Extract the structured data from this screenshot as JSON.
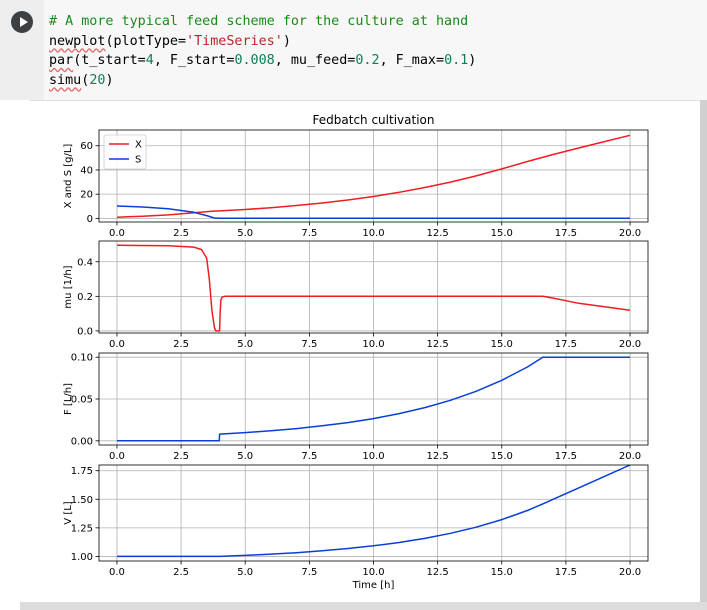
{
  "cell": {
    "run_button_label": "Run cell",
    "code_lines": [
      {
        "segments": [
          {
            "t": "# A more typical feed scheme for the culture at hand",
            "c": "c-comment"
          }
        ]
      },
      {
        "segments": [
          {
            "t": "newplot",
            "c": "sq"
          },
          {
            "t": "(plotType="
          },
          {
            "t": "'TimeSeries'",
            "c": "c-string"
          },
          {
            "t": ")"
          }
        ]
      },
      {
        "segments": [
          {
            "t": "par",
            "c": "sq"
          },
          {
            "t": "(t_start="
          },
          {
            "t": "4",
            "c": "c-num"
          },
          {
            "t": ", F_start="
          },
          {
            "t": "0.008",
            "c": "c-num"
          },
          {
            "t": ", mu_feed="
          },
          {
            "t": "0.2",
            "c": "c-num"
          },
          {
            "t": ", F_max="
          },
          {
            "t": "0.1",
            "c": "c-num"
          },
          {
            "t": ")"
          }
        ]
      },
      {
        "segments": [
          {
            "t": "simu",
            "c": "sq"
          },
          {
            "t": "("
          },
          {
            "t": "20",
            "c": "c-num"
          },
          {
            "t": ")"
          }
        ]
      }
    ]
  },
  "colors": {
    "x_series": "#ee1d23",
    "s_series": "#0a3fd6",
    "mu_series": "#ee1d23",
    "f_series": "#0a3fd6",
    "v_series": "#0a3fd6"
  },
  "chart_data": [
    {
      "type": "line",
      "title": "Fedbatch cultivation",
      "ylabel": "X and S [g/L]",
      "xlabel": "",
      "xlim": [
        -0.7,
        20.7
      ],
      "ylim": [
        -3,
        73
      ],
      "xticks": [
        "0.0",
        "2.5",
        "5.0",
        "7.5",
        "10.0",
        "12.5",
        "15.0",
        "17.5",
        "20.0"
      ],
      "yticks": [
        "0",
        "20",
        "40",
        "60"
      ],
      "legend_position": "top-left",
      "grid": true,
      "series": [
        {
          "name": "X",
          "color": "#ee1d23",
          "x": [
            0,
            1,
            2,
            3,
            3.7,
            4,
            5,
            6,
            7,
            8,
            9,
            10,
            11,
            12,
            13,
            14,
            15,
            16,
            17,
            18,
            19,
            20
          ],
          "y": [
            1.0,
            1.8,
            2.9,
            4.6,
            5.9,
            6.2,
            7.3,
            8.8,
            10.6,
            12.7,
            15.2,
            18.1,
            21.5,
            25.5,
            30.0,
            35.1,
            40.9,
            47.0,
            52.8,
            58.1,
            63.4,
            68.6
          ]
        },
        {
          "name": "S",
          "color": "#0a3fd6",
          "x": [
            0,
            1,
            2,
            3,
            3.5,
            3.8,
            4,
            5,
            10,
            15,
            20
          ],
          "y": [
            10.2,
            9.4,
            7.9,
            5.0,
            2.3,
            0.3,
            0.1,
            0.1,
            0.1,
            0.1,
            0.1
          ]
        }
      ]
    },
    {
      "type": "line",
      "ylabel": "mu [1/h]",
      "xlabel": "",
      "xlim": [
        -0.7,
        20.7
      ],
      "ylim": [
        -0.012,
        0.52
      ],
      "xticks": [
        "0.0",
        "2.5",
        "5.0",
        "7.5",
        "10.0",
        "12.5",
        "15.0",
        "17.5",
        "20.0"
      ],
      "yticks": [
        "0.0",
        "0.2",
        "0.4"
      ],
      "grid": true,
      "series": [
        {
          "name": "",
          "color": "#ee1d23",
          "x": [
            0,
            2,
            3,
            3.3,
            3.5,
            3.6,
            3.7,
            3.8,
            3.85,
            4.0,
            4.02,
            4.05,
            4.1,
            4.2,
            5,
            10,
            16.6,
            17,
            17.5,
            18,
            19,
            20
          ],
          "y": [
            0.495,
            0.492,
            0.485,
            0.47,
            0.42,
            0.3,
            0.12,
            0.02,
            0.0,
            0.0,
            0.1,
            0.18,
            0.195,
            0.2,
            0.2,
            0.2,
            0.2,
            0.19,
            0.175,
            0.16,
            0.14,
            0.12
          ]
        }
      ]
    },
    {
      "type": "line",
      "ylabel": "F [L/h]",
      "xlabel": "",
      "xlim": [
        -0.7,
        20.7
      ],
      "ylim": [
        -0.005,
        0.105
      ],
      "xticks": [
        "0.0",
        "2.5",
        "5.0",
        "7.5",
        "10.0",
        "12.5",
        "15.0",
        "17.5",
        "20.0"
      ],
      "yticks": [
        "0.00",
        "0.05",
        "0.10"
      ],
      "grid": true,
      "series": [
        {
          "name": "",
          "color": "#0a3fd6",
          "x": [
            0,
            1,
            2,
            3,
            3.99,
            4.0,
            5,
            6,
            7,
            8,
            9,
            10,
            11,
            12,
            13,
            14,
            15,
            16,
            16.6,
            17,
            18,
            19,
            20
          ],
          "y": [
            0,
            0,
            0,
            0,
            0,
            0.008,
            0.0098,
            0.012,
            0.0146,
            0.0179,
            0.0218,
            0.0266,
            0.0325,
            0.0397,
            0.0485,
            0.0592,
            0.0723,
            0.0883,
            0.1,
            0.1,
            0.1,
            0.1,
            0.1
          ]
        }
      ]
    },
    {
      "type": "line",
      "ylabel": "V [L]",
      "xlabel": "Time [h]",
      "xlim": [
        -0.7,
        20.7
      ],
      "ylim": [
        0.96,
        1.8
      ],
      "xticks": [
        "0.0",
        "2.5",
        "5.0",
        "7.5",
        "10.0",
        "12.5",
        "15.0",
        "17.5",
        "20.0"
      ],
      "yticks": [
        "1.00",
        "1.25",
        "1.50",
        "1.75"
      ],
      "grid": true,
      "series": [
        {
          "name": "",
          "color": "#0a3fd6",
          "x": [
            0,
            2,
            4,
            5,
            6,
            7,
            8,
            9,
            10,
            11,
            12,
            13,
            14,
            15,
            16,
            16.6,
            17,
            18,
            19,
            20
          ],
          "y": [
            1.0,
            1.0,
            1.0,
            1.009,
            1.02,
            1.033,
            1.049,
            1.069,
            1.093,
            1.122,
            1.158,
            1.202,
            1.256,
            1.322,
            1.402,
            1.46,
            1.5,
            1.6,
            1.7,
            1.8
          ]
        }
      ]
    }
  ]
}
